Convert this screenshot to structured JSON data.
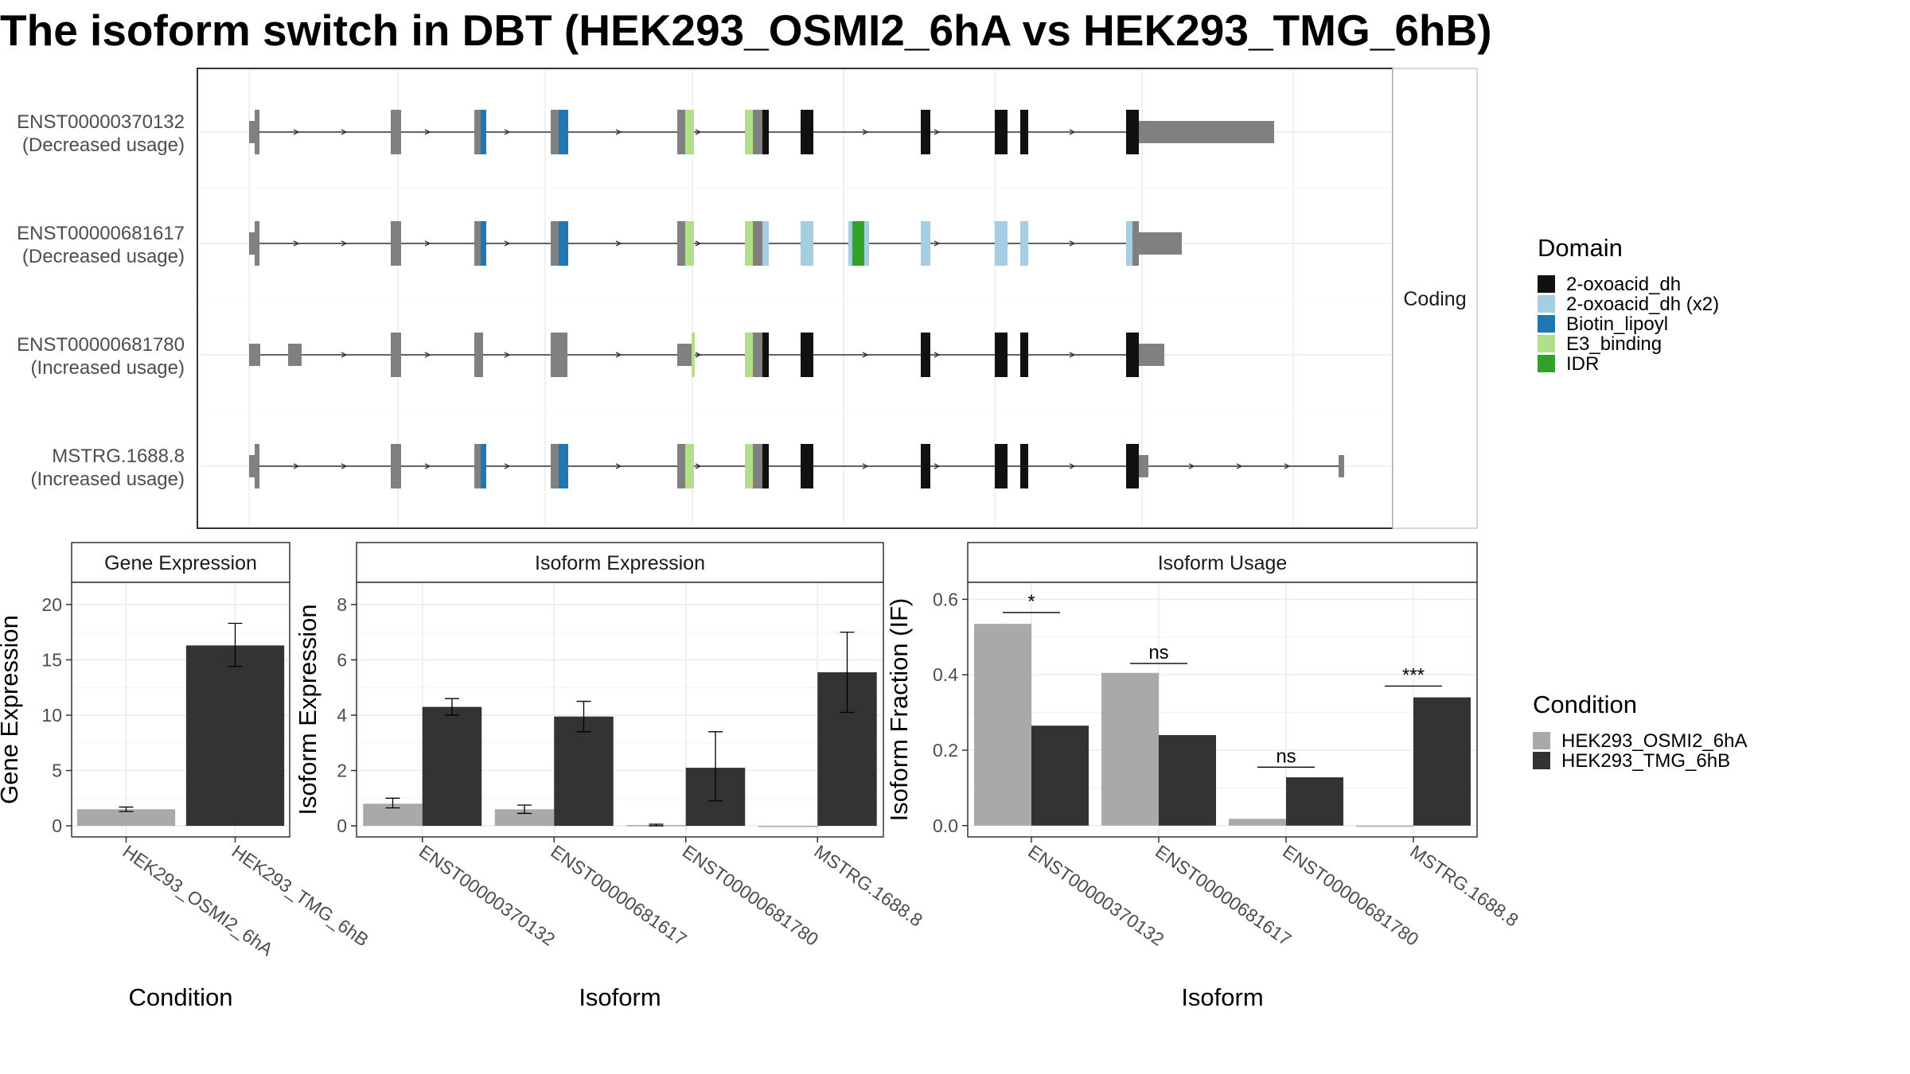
{
  "title": "The isoform switch in DBT (HEK293_OSMI2_6hA vs HEK293_TMG_6hB)",
  "colors": {
    "2-oxoacid_dh": "#111111",
    "2-oxoacid_dh (x2)": "#a6cee3",
    "Biotin_lipoyl": "#1f78b4",
    "E3_binding": "#b2df8a",
    "IDR": "#33a02c",
    "noncoding": "#808080",
    "HEK293_OSMI2_6hA": "#a9a9a9",
    "HEK293_TMG_6hB": "#333333"
  },
  "domain_legend": {
    "title": "Domain",
    "items": [
      "2-oxoacid_dh",
      "2-oxoacid_dh (x2)",
      "Biotin_lipoyl",
      "E3_binding",
      "IDR"
    ]
  },
  "condition_legend": {
    "title": "Condition",
    "items": [
      "HEK293_OSMI2_6hA",
      "HEK293_TMG_6hB"
    ]
  },
  "structure_panel": {
    "strip_label": "Coding",
    "isoforms": [
      {
        "id": "ENST00000370132",
        "usage": "(Decreased usage)"
      },
      {
        "id": "ENST00000681617",
        "usage": "(Decreased usage)"
      },
      {
        "id": "ENST00000681780",
        "usage": "(Increased usage)"
      },
      {
        "id": "MSTRG.1688.8",
        "usage": "(Increased usage)"
      }
    ]
  },
  "chart_data": [
    {
      "type": "bar",
      "title": "Gene Expression",
      "xlabel": "Condition",
      "ylabel": "Gene Expression",
      "categories": [
        "HEK293_OSMI2_6hA",
        "HEK293_TMG_6hB"
      ],
      "values": [
        1.5,
        16.3
      ],
      "err_low": [
        1.3,
        14.4
      ],
      "err_high": [
        1.7,
        18.3
      ],
      "ylim": [
        -1.0,
        22.0
      ],
      "yticks": [
        "0",
        "5",
        "10",
        "15",
        "20"
      ]
    },
    {
      "type": "bar",
      "title": "Isoform Expression",
      "xlabel": "Isoform",
      "ylabel": "Isoform Expression",
      "categories": [
        "ENST00000370132",
        "ENST00000681617",
        "ENST00000681780",
        "MSTRG.1688.8"
      ],
      "series": [
        {
          "name": "HEK293_OSMI2_6hA",
          "values": [
            0.8,
            0.6,
            0.03,
            0.0
          ],
          "err_low": [
            0.65,
            0.45,
            0.0,
            0.0
          ],
          "err_high": [
            1.0,
            0.75,
            0.06,
            0.0
          ]
        },
        {
          "name": "HEK293_TMG_6hB",
          "values": [
            4.3,
            3.95,
            2.1,
            5.55
          ],
          "err_low": [
            4.0,
            3.4,
            0.9,
            4.1
          ],
          "err_high": [
            4.6,
            4.5,
            3.4,
            7.0
          ]
        }
      ],
      "ylim": [
        -0.4,
        8.8
      ],
      "yticks": [
        "0",
        "2",
        "4",
        "6",
        "8"
      ]
    },
    {
      "type": "bar",
      "title": "Isoform Usage",
      "xlabel": "Isoform",
      "ylabel": "Isoform Fraction (IF)",
      "categories": [
        "ENST00000370132",
        "ENST00000681617",
        "ENST00000681780",
        "MSTRG.1688.8"
      ],
      "series": [
        {
          "name": "HEK293_OSMI2_6hA",
          "values": [
            0.535,
            0.405,
            0.018,
            0.0
          ]
        },
        {
          "name": "HEK293_TMG_6hB",
          "values": [
            0.265,
            0.24,
            0.128,
            0.34
          ]
        }
      ],
      "significance": [
        "*",
        "ns",
        "ns",
        "***"
      ],
      "sig_y": [
        0.565,
        0.43,
        0.155,
        0.37
      ],
      "ylim": [
        -0.03,
        0.645
      ],
      "yticks": [
        "0.0",
        "0.2",
        "0.4",
        "0.6"
      ]
    }
  ]
}
